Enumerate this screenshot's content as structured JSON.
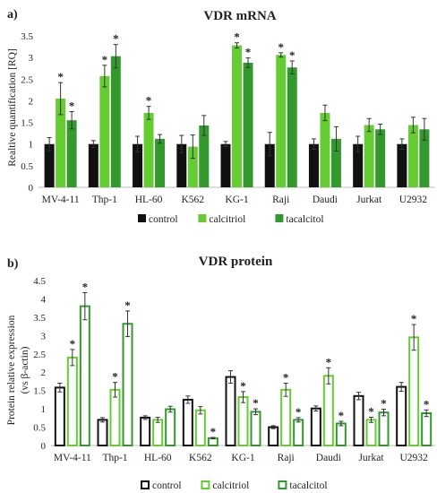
{
  "chart_data": [
    {
      "panel": "a)",
      "type": "bar",
      "style": "filled",
      "title": "VDR mRNA",
      "xlabel": "",
      "ylabel": "Realtive quantification [RQ]",
      "ylim": [
        0,
        3.5
      ],
      "yticks": [
        "0",
        "0.5",
        "1",
        "1.5",
        "2",
        "2.5",
        "3",
        "3.5"
      ],
      "grid": false,
      "legend_position": "bottom",
      "categories": [
        "MV-4-11",
        "Thp-1",
        "HL-60",
        "K562",
        "KG-1",
        "Raji",
        "Daudi",
        "Jurkat",
        "U2932"
      ],
      "series": [
        {
          "name": "control",
          "color": "#111111",
          "values": [
            1.0,
            1.0,
            1.0,
            1.0,
            1.0,
            1.0,
            1.0,
            1.0,
            1.0
          ],
          "errors": [
            0.15,
            0.08,
            0.18,
            0.2,
            0.06,
            0.27,
            0.12,
            0.18,
            0.12
          ],
          "sig": [
            false,
            false,
            false,
            false,
            false,
            false,
            false,
            false,
            false
          ]
        },
        {
          "name": "calcitriol",
          "color": "#66cc33",
          "values": [
            2.05,
            2.57,
            1.72,
            0.94,
            3.28,
            3.06,
            1.72,
            1.44,
            1.44
          ],
          "errors": [
            0.37,
            0.25,
            0.15,
            0.27,
            0.06,
            0.05,
            0.18,
            0.15,
            0.18
          ],
          "sig": [
            true,
            true,
            true,
            false,
            true,
            true,
            false,
            false,
            false
          ]
        },
        {
          "name": "tacalcitol",
          "color": "#33992e",
          "values": [
            1.55,
            3.03,
            1.12,
            1.43,
            2.88,
            2.77,
            1.12,
            1.34,
            1.34
          ],
          "errors": [
            0.2,
            0.27,
            0.1,
            0.23,
            0.11,
            0.15,
            0.28,
            0.12,
            0.25
          ],
          "sig": [
            true,
            true,
            false,
            false,
            true,
            true,
            false,
            false,
            false
          ]
        }
      ]
    },
    {
      "panel": "b)",
      "type": "bar",
      "style": "outlined",
      "title": "VDR protein",
      "xlabel": "",
      "ylabel_line1": "Protein relative expression",
      "ylabel_line2": "(vs β-actin)",
      "ylim": [
        0,
        4.5
      ],
      "yticks": [
        "0",
        "0.5",
        "1",
        "1.5",
        "2",
        "2.5",
        "3",
        "3.5",
        "4",
        "4.5"
      ],
      "grid": false,
      "legend_position": "bottom",
      "categories": [
        "MV-4-11",
        "Thp-1",
        "HL-60",
        "K562",
        "KG-1",
        "Raji",
        "Daudi",
        "Jurkat",
        "U2932"
      ],
      "series": [
        {
          "name": "control",
          "color": "#111111",
          "values": [
            1.58,
            0.7,
            0.76,
            1.25,
            1.87,
            0.5,
            1.01,
            1.35,
            1.6
          ],
          "errors": [
            0.12,
            0.06,
            0.05,
            0.1,
            0.17,
            0.04,
            0.07,
            0.1,
            0.12
          ],
          "sig": [
            false,
            false,
            false,
            false,
            false,
            false,
            false,
            false,
            false
          ]
        },
        {
          "name": "calcitriol",
          "color": "#66cc33",
          "values": [
            2.4,
            1.52,
            0.7,
            0.96,
            1.32,
            1.52,
            1.9,
            0.7,
            2.95
          ],
          "errors": [
            0.22,
            0.2,
            0.07,
            0.1,
            0.15,
            0.18,
            0.22,
            0.07,
            0.35
          ],
          "sig": [
            true,
            true,
            false,
            false,
            true,
            true,
            true,
            true,
            true
          ]
        },
        {
          "name": "tacalcitol",
          "color": "#33992e",
          "values": [
            3.8,
            3.32,
            0.99,
            0.2,
            0.92,
            0.7,
            0.6,
            0.9,
            0.88
          ],
          "errors": [
            0.37,
            0.35,
            0.08,
            0.02,
            0.08,
            0.06,
            0.06,
            0.09,
            0.09
          ],
          "sig": [
            true,
            true,
            false,
            true,
            true,
            true,
            true,
            true,
            true
          ]
        }
      ]
    }
  ],
  "significance_marker": "*"
}
